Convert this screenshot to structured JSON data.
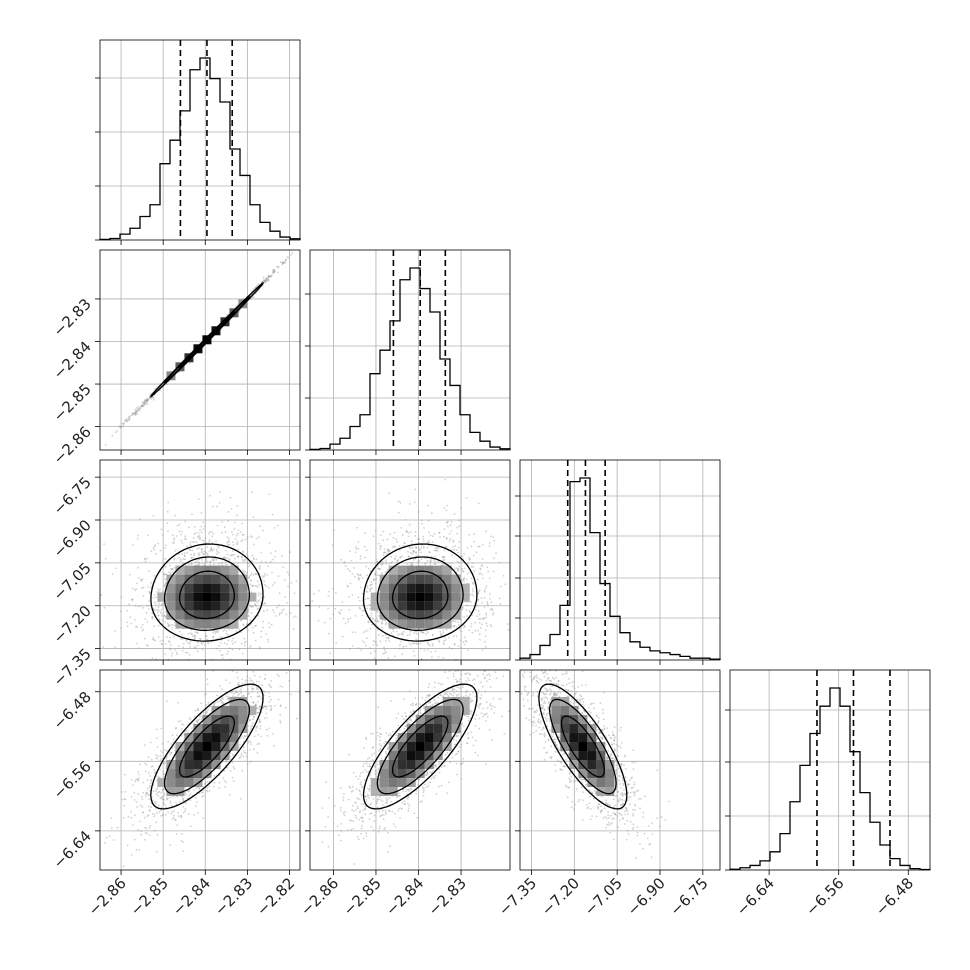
{
  "chart_data": {
    "type": "corner",
    "parameters": [
      {
        "ticks": [
          -2.86,
          -2.85,
          -2.84,
          -2.83,
          -2.82
        ],
        "tick_labels": [
          "−2.86",
          "−2.85",
          "−2.84",
          "−2.83",
          "−2.82"
        ],
        "range": [
          -2.865,
          -2.8175
        ],
        "quantiles": [
          -2.8459,
          -2.8396,
          -2.8336
        ],
        "hist": [
          0.2,
          0.5,
          2,
          4,
          8,
          12,
          26,
          34,
          44,
          58,
          62,
          55,
          47,
          31,
          22,
          12,
          6,
          3,
          1,
          0.4
        ]
      },
      {
        "ticks": [
          -2.86,
          -2.85,
          -2.84,
          -2.83
        ],
        "tick_labels": [
          "−2.86",
          "−2.85",
          "−2.84",
          "−2.83"
        ],
        "range": [
          -2.8655,
          -2.8185
        ],
        "quantiles": [
          -2.8459,
          -2.8396,
          -2.8337
        ],
        "hist": [
          0.2,
          0.5,
          2,
          4,
          8,
          12,
          26,
          34,
          44,
          58,
          62,
          55,
          47,
          31,
          22,
          12,
          6,
          3,
          1,
          0.4
        ]
      },
      {
        "ticks": [
          -7.35,
          -7.2,
          -7.05,
          -6.9,
          -6.75
        ],
        "tick_labels": [
          "−7.35",
          "−7.20",
          "−7.05",
          "−6.90",
          "−6.75"
        ],
        "range": [
          -7.39,
          -6.69
        ],
        "quantiles": [
          -7.223,
          -7.161,
          -7.092
        ],
        "hist": [
          1,
          3,
          8,
          14,
          30,
          98,
          100,
          70,
          42,
          24,
          15,
          10,
          7,
          5,
          4,
          3,
          2,
          1,
          1,
          0.5
        ]
      },
      {
        "ticks": [
          -6.64,
          -6.56,
          -6.48
        ],
        "tick_labels": [
          "−6.64",
          "−6.56",
          "−6.48"
        ],
        "range": [
          -6.685,
          -6.455
        ],
        "quantiles": [
          -6.585,
          -6.543,
          -6.501
        ],
        "hist": [
          0.3,
          1,
          2,
          4,
          8,
          16,
          30,
          46,
          60,
          72,
          80,
          72,
          52,
          34,
          21,
          11,
          5,
          2,
          0.6,
          0.2
        ]
      }
    ],
    "diag_yticks": [
      [
        0.0,
        0.27,
        0.54,
        0.81
      ],
      [
        0.0,
        0.26,
        0.52,
        0.78
      ],
      [
        0.0,
        0.21,
        0.41,
        0.62,
        0.82
      ],
      [
        0.0,
        0.27,
        0.54,
        0.8
      ]
    ],
    "pairs": [
      {
        "row": 1,
        "col": 0,
        "cx": -2.8396,
        "cy": -2.8396,
        "sx": 0.0065,
        "sy": 0.0065,
        "rho": 0.999,
        "skew": 0
      },
      {
        "row": 2,
        "col": 0,
        "cx": -2.8396,
        "cy": -7.17,
        "sx": 0.0065,
        "sy": 0.075,
        "rho": 0.05,
        "skew": 0.35
      },
      {
        "row": 2,
        "col": 1,
        "cx": -2.8396,
        "cy": -7.17,
        "sx": 0.0065,
        "sy": 0.075,
        "rho": 0.05,
        "skew": 0.35
      },
      {
        "row": 3,
        "col": 0,
        "cx": -2.8396,
        "cy": -6.543,
        "sx": 0.0065,
        "sy": 0.035,
        "rho": 0.78,
        "skew": 0
      },
      {
        "row": 3,
        "col": 1,
        "cx": -2.8396,
        "cy": -6.543,
        "sx": 0.0065,
        "sy": 0.035,
        "rho": 0.78,
        "skew": 0
      },
      {
        "row": 3,
        "col": 2,
        "cx": -7.17,
        "cy": -6.543,
        "sx": 0.075,
        "sy": 0.035,
        "rho": -0.78,
        "skew": 0
      }
    ],
    "grid": true,
    "colors": {
      "line": "#000000",
      "scatter": "#9a9a9a",
      "grid": "#b0b0b0"
    }
  }
}
